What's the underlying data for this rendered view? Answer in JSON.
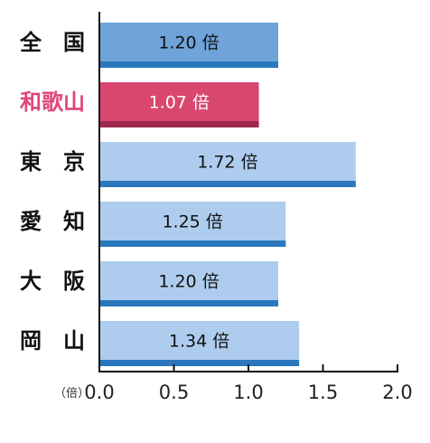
{
  "chart_data": {
    "type": "bar",
    "orientation": "horizontal",
    "categories": [
      "全　国",
      "和歌山",
      "東　京",
      "愛　知",
      "大　阪",
      "岡　山"
    ],
    "values": [
      1.2,
      1.07,
      1.72,
      1.25,
      1.2,
      1.34
    ],
    "value_labels": [
      "1.20 倍",
      "1.07 倍",
      "1.72 倍",
      "1.25 倍",
      "1.20 倍",
      "1.34 倍"
    ],
    "highlight_category": "和歌山",
    "xlim": [
      0,
      2.0
    ],
    "xticks": [
      "0.0",
      "0.5",
      "1.0",
      "1.5",
      "2.0"
    ],
    "xlabel": "（倍）",
    "grid": false,
    "colors": {
      "national": "#6fa3d9",
      "highlight": "#d9476f",
      "highlight_dark": "#a0284f",
      "default": "#aecdee",
      "base_stripe": "#2a77bd",
      "highlight_text": "#e0457a",
      "text": "#111111"
    }
  }
}
